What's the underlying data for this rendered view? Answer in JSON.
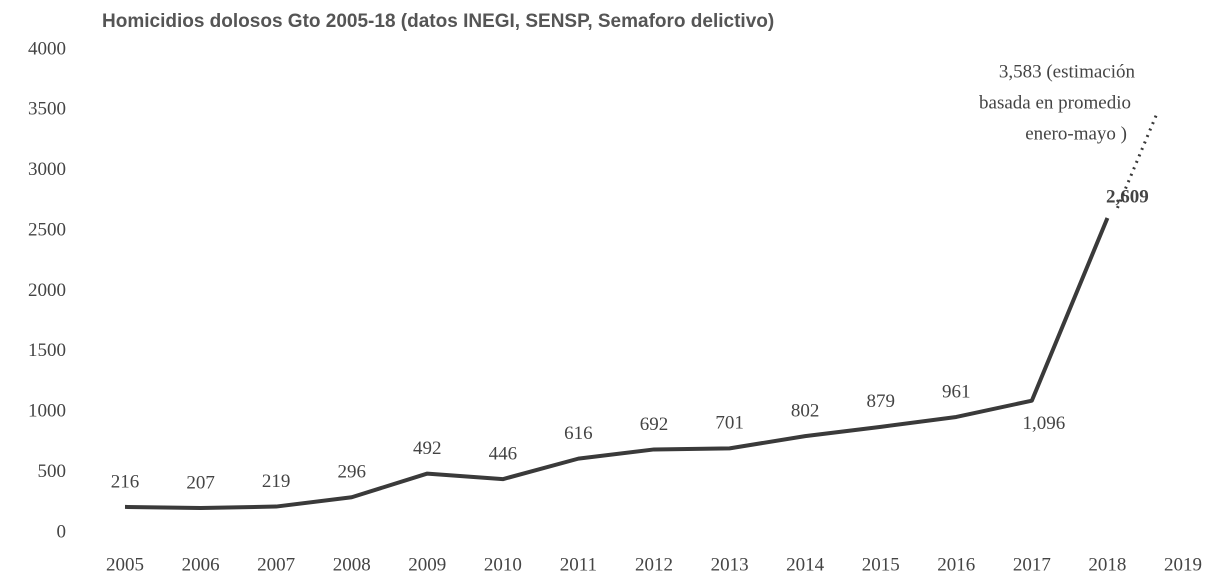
{
  "chart_data": {
    "type": "line",
    "title": "Homicidios dolosos Gto 2005-18 (datos INEGI, SENSP, Semaforo delictivo)",
    "categories": [
      "2005",
      "2006",
      "2007",
      "2008",
      "2009",
      "2010",
      "2011",
      "2012",
      "2013",
      "2014",
      "2015",
      "2016",
      "2017",
      "2018",
      "2019"
    ],
    "series": [
      {
        "name": "Homicidios dolosos",
        "color": "#3a3a3a",
        "values": [
          216,
          207,
          219,
          296,
          492,
          446,
          616,
          692,
          701,
          802,
          879,
          961,
          1096,
          2609,
          null
        ],
        "value_labels": [
          "216",
          "207",
          "219",
          "296",
          "492",
          "446",
          "616",
          "692",
          "701",
          "802",
          "879",
          "961",
          "1,096",
          "2,609",
          null
        ]
      }
    ],
    "ylim": [
      0,
      4000
    ],
    "yticks": [
      0,
      500,
      1000,
      1500,
      2000,
      2500,
      3000,
      3500,
      4000
    ],
    "grid": false,
    "annotation": {
      "value": 3583,
      "lines": [
        "3,583 (estimación",
        "basada en promedio",
        "enero-mayo )"
      ]
    }
  }
}
